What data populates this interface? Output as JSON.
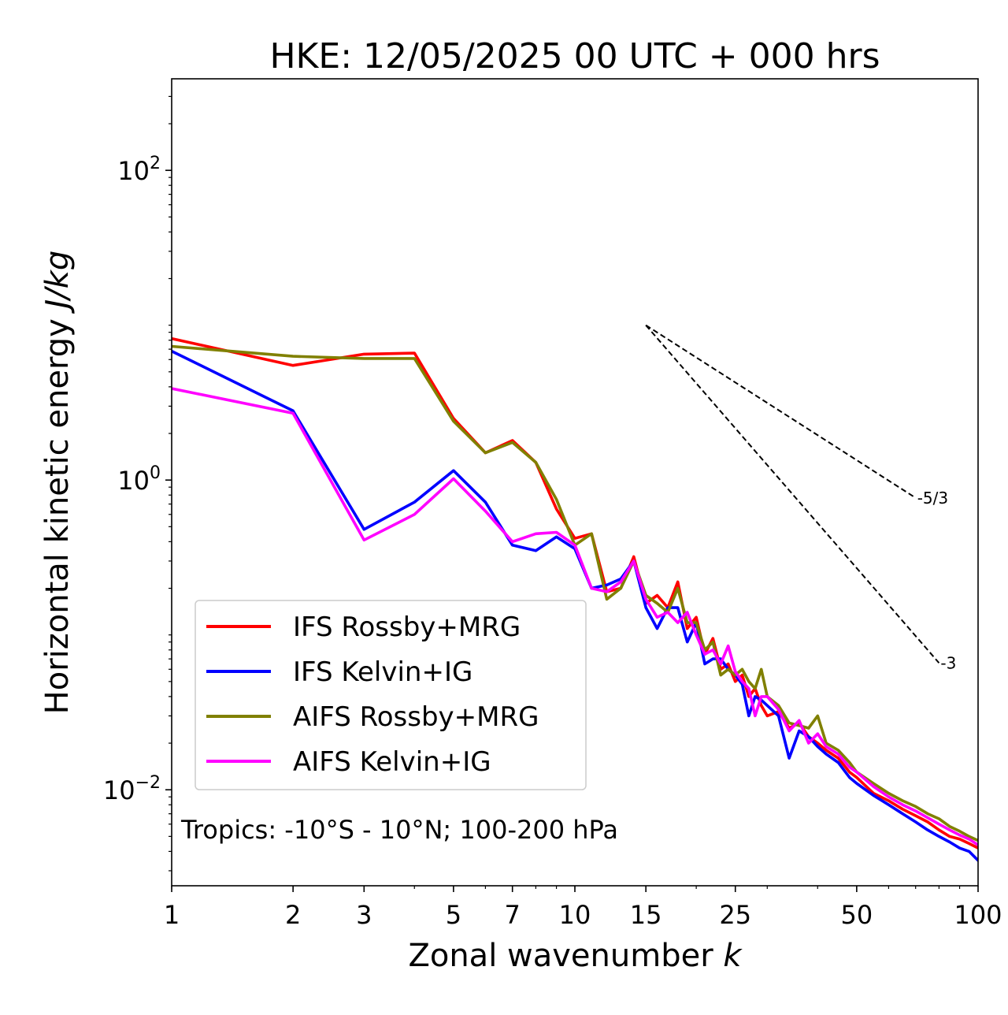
{
  "chart_data": {
    "type": "line",
    "title": "HKE: 12/05/2025 00 UTC + 000 hrs",
    "xlabel": "Zonal wavenumber",
    "xlabel_var": "k",
    "ylabel": "Horizontal kinetic energy",
    "ylabel_unit": "J/kg",
    "x_scale": "log",
    "y_scale": "log",
    "xlim": [
      1,
      100
    ],
    "ylim": [
      0.0024,
      390
    ],
    "x_ticks": [
      {
        "value": 1,
        "label": "1"
      },
      {
        "value": 2,
        "label": "2"
      },
      {
        "value": 3,
        "label": "3"
      },
      {
        "value": 5,
        "label": "5"
      },
      {
        "value": 7,
        "label": "7"
      },
      {
        "value": 10,
        "label": "10"
      },
      {
        "value": 15,
        "label": "15"
      },
      {
        "value": 25,
        "label": "25"
      },
      {
        "value": 50,
        "label": "50"
      },
      {
        "value": 100,
        "label": "100"
      }
    ],
    "y_ticks": [
      {
        "value": 0.01,
        "base": "10",
        "exp": "−2"
      },
      {
        "value": 1,
        "base": "10",
        "exp": "0"
      },
      {
        "value": 100,
        "base": "10",
        "exp": "2"
      }
    ],
    "annotation": "Tropics: -10°S - 10°N; 100-200 hPa",
    "legend_position": "lower-left",
    "reference_lines": [
      {
        "label": "-5/3",
        "slope": -1.6667,
        "x_start": 15,
        "x_end": 70,
        "y_start": 10.0
      },
      {
        "label": "-3",
        "slope": -3,
        "x_start": 15,
        "x_end": 80,
        "y_start": 10.0
      }
    ],
    "series": [
      {
        "name": "IFS Rossby+MRG",
        "color": "#ff0000",
        "points": [
          [
            1,
            8.2
          ],
          [
            2,
            5.5
          ],
          [
            3,
            6.5
          ],
          [
            4,
            6.6
          ],
          [
            5,
            2.5
          ],
          [
            6,
            1.5
          ],
          [
            7,
            1.8
          ],
          [
            8,
            1.3
          ],
          [
            9,
            0.65
          ],
          [
            10,
            0.42
          ],
          [
            11,
            0.45
          ],
          [
            12,
            0.19
          ],
          [
            13,
            0.2
          ],
          [
            14,
            0.32
          ],
          [
            15,
            0.16
          ],
          [
            16,
            0.18
          ],
          [
            17,
            0.15
          ],
          [
            18,
            0.22
          ],
          [
            19,
            0.11
          ],
          [
            20,
            0.13
          ],
          [
            21,
            0.075
          ],
          [
            22,
            0.095
          ],
          [
            23,
            0.06
          ],
          [
            24,
            0.065
          ],
          [
            25,
            0.05
          ],
          [
            26,
            0.055
          ],
          [
            27,
            0.04
          ],
          [
            28,
            0.045
          ],
          [
            29,
            0.035
          ],
          [
            30,
            0.03
          ],
          [
            32,
            0.032
          ],
          [
            34,
            0.025
          ],
          [
            36,
            0.027
          ],
          [
            38,
            0.022
          ],
          [
            40,
            0.02
          ],
          [
            42,
            0.018
          ],
          [
            45,
            0.016
          ],
          [
            48,
            0.013
          ],
          [
            50,
            0.012
          ],
          [
            55,
            0.0095
          ],
          [
            60,
            0.0085
          ],
          [
            65,
            0.0075
          ],
          [
            70,
            0.0068
          ],
          [
            75,
            0.0062
          ],
          [
            80,
            0.0055
          ],
          [
            85,
            0.005
          ],
          [
            90,
            0.0048
          ],
          [
            95,
            0.0045
          ],
          [
            100,
            0.0042
          ]
        ]
      },
      {
        "name": "IFS Kelvin+IG",
        "color": "#0000ff",
        "points": [
          [
            1,
            6.8
          ],
          [
            2,
            2.8
          ],
          [
            3,
            0.48
          ],
          [
            4,
            0.72
          ],
          [
            5,
            1.15
          ],
          [
            6,
            0.72
          ],
          [
            7,
            0.38
          ],
          [
            8,
            0.35
          ],
          [
            9,
            0.43
          ],
          [
            10,
            0.36
          ],
          [
            11,
            0.2
          ],
          [
            12,
            0.21
          ],
          [
            13,
            0.23
          ],
          [
            14,
            0.3
          ],
          [
            15,
            0.15
          ],
          [
            16,
            0.11
          ],
          [
            17,
            0.15
          ],
          [
            18,
            0.15
          ],
          [
            19,
            0.09
          ],
          [
            20,
            0.12
          ],
          [
            21,
            0.065
          ],
          [
            22,
            0.07
          ],
          [
            23,
            0.07
          ],
          [
            24,
            0.06
          ],
          [
            25,
            0.055
          ],
          [
            26,
            0.048
          ],
          [
            27,
            0.03
          ],
          [
            28,
            0.04
          ],
          [
            29,
            0.038
          ],
          [
            30,
            0.035
          ],
          [
            32,
            0.03
          ],
          [
            34,
            0.016
          ],
          [
            36,
            0.024
          ],
          [
            38,
            0.022
          ],
          [
            40,
            0.019
          ],
          [
            42,
            0.017
          ],
          [
            45,
            0.015
          ],
          [
            48,
            0.012
          ],
          [
            50,
            0.011
          ],
          [
            55,
            0.0092
          ],
          [
            60,
            0.008
          ],
          [
            65,
            0.007
          ],
          [
            70,
            0.0062
          ],
          [
            75,
            0.0055
          ],
          [
            80,
            0.005
          ],
          [
            85,
            0.0046
          ],
          [
            90,
            0.0042
          ],
          [
            95,
            0.004
          ],
          [
            100,
            0.0035
          ]
        ]
      },
      {
        "name": "AIFS Rossby+MRG",
        "color": "#808000",
        "points": [
          [
            1,
            7.3
          ],
          [
            2,
            6.3
          ],
          [
            3,
            6.1
          ],
          [
            4,
            6.1
          ],
          [
            5,
            2.4
          ],
          [
            6,
            1.5
          ],
          [
            7,
            1.75
          ],
          [
            8,
            1.3
          ],
          [
            9,
            0.75
          ],
          [
            10,
            0.38
          ],
          [
            11,
            0.45
          ],
          [
            12,
            0.17
          ],
          [
            13,
            0.2
          ],
          [
            14,
            0.3
          ],
          [
            15,
            0.18
          ],
          [
            16,
            0.16
          ],
          [
            17,
            0.14
          ],
          [
            18,
            0.2
          ],
          [
            19,
            0.12
          ],
          [
            20,
            0.12
          ],
          [
            21,
            0.08
          ],
          [
            22,
            0.09
          ],
          [
            23,
            0.055
          ],
          [
            24,
            0.06
          ],
          [
            25,
            0.055
          ],
          [
            26,
            0.06
          ],
          [
            27,
            0.05
          ],
          [
            28,
            0.045
          ],
          [
            29,
            0.06
          ],
          [
            30,
            0.04
          ],
          [
            32,
            0.035
          ],
          [
            34,
            0.027
          ],
          [
            36,
            0.026
          ],
          [
            38,
            0.025
          ],
          [
            40,
            0.03
          ],
          [
            42,
            0.02
          ],
          [
            45,
            0.018
          ],
          [
            48,
            0.015
          ],
          [
            50,
            0.013
          ],
          [
            55,
            0.011
          ],
          [
            60,
            0.0095
          ],
          [
            65,
            0.0085
          ],
          [
            70,
            0.0078
          ],
          [
            75,
            0.007
          ],
          [
            80,
            0.0065
          ],
          [
            85,
            0.0058
          ],
          [
            90,
            0.0054
          ],
          [
            95,
            0.005
          ],
          [
            100,
            0.0047
          ]
        ]
      },
      {
        "name": "AIFS Kelvin+IG",
        "color": "#ff00ff",
        "points": [
          [
            1,
            3.9
          ],
          [
            2,
            2.7
          ],
          [
            3,
            0.41
          ],
          [
            4,
            0.6
          ],
          [
            5,
            1.02
          ],
          [
            6,
            0.63
          ],
          [
            7,
            0.4
          ],
          [
            8,
            0.45
          ],
          [
            9,
            0.46
          ],
          [
            10,
            0.38
          ],
          [
            11,
            0.2
          ],
          [
            12,
            0.19
          ],
          [
            13,
            0.22
          ],
          [
            14,
            0.3
          ],
          [
            15,
            0.17
          ],
          [
            16,
            0.13
          ],
          [
            17,
            0.14
          ],
          [
            18,
            0.12
          ],
          [
            19,
            0.14
          ],
          [
            20,
            0.1
          ],
          [
            21,
            0.075
          ],
          [
            22,
            0.08
          ],
          [
            23,
            0.065
          ],
          [
            24,
            0.085
          ],
          [
            25,
            0.058
          ],
          [
            26,
            0.05
          ],
          [
            27,
            0.045
          ],
          [
            28,
            0.03
          ],
          [
            29,
            0.04
          ],
          [
            30,
            0.04
          ],
          [
            32,
            0.033
          ],
          [
            34,
            0.024
          ],
          [
            36,
            0.028
          ],
          [
            38,
            0.02
          ],
          [
            40,
            0.023
          ],
          [
            42,
            0.019
          ],
          [
            45,
            0.017
          ],
          [
            48,
            0.014
          ],
          [
            50,
            0.013
          ],
          [
            55,
            0.0105
          ],
          [
            60,
            0.009
          ],
          [
            65,
            0.008
          ],
          [
            70,
            0.0073
          ],
          [
            75,
            0.0066
          ],
          [
            80,
            0.006
          ],
          [
            85,
            0.0055
          ],
          [
            90,
            0.0051
          ],
          [
            95,
            0.0048
          ],
          [
            100,
            0.0044
          ]
        ]
      }
    ]
  }
}
